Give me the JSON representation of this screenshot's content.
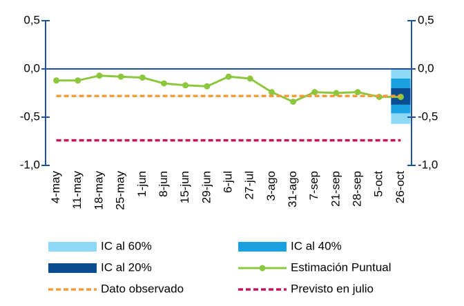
{
  "chart_data": {
    "type": "line",
    "categories": [
      "4-may",
      "11-may",
      "18-may",
      "25-may",
      "1-jun",
      "8-jun",
      "15-jun",
      "29-jun",
      "6-jul",
      "27-jul",
      "3-ago",
      "31-ago",
      "7-sep",
      "21-sep",
      "28-sep",
      "5-oct",
      "26-oct"
    ],
    "bands": [
      {
        "name": "IC al 60%",
        "color": "#8ed8f8",
        "low": [
          null,
          null,
          null,
          null,
          null,
          null,
          null,
          null,
          null,
          null,
          null,
          null,
          null,
          null,
          null,
          null,
          -0.57
        ],
        "high": [
          null,
          null,
          null,
          null,
          null,
          null,
          null,
          null,
          null,
          null,
          null,
          null,
          null,
          null,
          null,
          null,
          0.0
        ]
      },
      {
        "name": "IC al 40%",
        "color": "#1ba1e2",
        "low": [
          null,
          null,
          null,
          null,
          null,
          null,
          null,
          null,
          null,
          null,
          null,
          null,
          null,
          null,
          null,
          null,
          -0.46
        ],
        "high": [
          null,
          null,
          null,
          null,
          null,
          null,
          null,
          null,
          null,
          null,
          null,
          null,
          null,
          null,
          null,
          null,
          -0.1
        ]
      },
      {
        "name": "IC al 20%",
        "color": "#0b4d91",
        "low": [
          null,
          null,
          null,
          null,
          null,
          null,
          null,
          null,
          null,
          null,
          null,
          null,
          null,
          null,
          null,
          null,
          -0.37
        ],
        "high": [
          null,
          null,
          null,
          null,
          null,
          null,
          null,
          null,
          null,
          null,
          null,
          null,
          null,
          null,
          null,
          null,
          -0.2
        ]
      }
    ],
    "series": [
      {
        "name": "Estimación Puntual",
        "color": "#8dc63f",
        "style": "solid",
        "marker": true,
        "values": [
          -0.12,
          -0.12,
          -0.07,
          -0.08,
          -0.09,
          -0.15,
          -0.17,
          -0.18,
          -0.08,
          -0.1,
          -0.24,
          -0.34,
          -0.24,
          -0.25,
          -0.24,
          -0.29,
          -0.29
        ]
      },
      {
        "name": "Dato observado",
        "color": "#f39c3a",
        "style": "dashed",
        "marker": false,
        "values": [
          -0.28,
          -0.28,
          -0.28,
          -0.28,
          -0.28,
          -0.28,
          -0.28,
          -0.28,
          -0.28,
          -0.28,
          -0.28,
          -0.28,
          -0.28,
          -0.28,
          -0.28,
          -0.28,
          -0.28
        ]
      },
      {
        "name": "Previsto en julio",
        "color": "#c2185b",
        "style": "dashed",
        "marker": false,
        "values": [
          -0.74,
          -0.74,
          -0.74,
          -0.74,
          -0.74,
          -0.74,
          -0.74,
          -0.74,
          -0.74,
          -0.74,
          -0.74,
          -0.74,
          -0.74,
          -0.74,
          -0.74,
          -0.74,
          -0.74
        ]
      }
    ],
    "ylim": [
      -1.0,
      0.5
    ],
    "yticks": [
      {
        "value": -1.0,
        "label": "-1,0"
      },
      {
        "value": -0.5,
        "label": "-0,5"
      },
      {
        "value": 0.0,
        "label": "0,0"
      },
      {
        "value": 0.5,
        "label": "0,5"
      }
    ],
    "y2lim": [
      -1.0,
      0.5
    ],
    "y2ticks": [
      {
        "value": -1.0,
        "label": "-1,0"
      },
      {
        "value": -0.5,
        "label": "-0,5"
      },
      {
        "value": 0.0,
        "label": "0,0"
      },
      {
        "value": 0.5,
        "label": "0,5"
      }
    ],
    "axis_color": "#1f4fa0"
  }
}
